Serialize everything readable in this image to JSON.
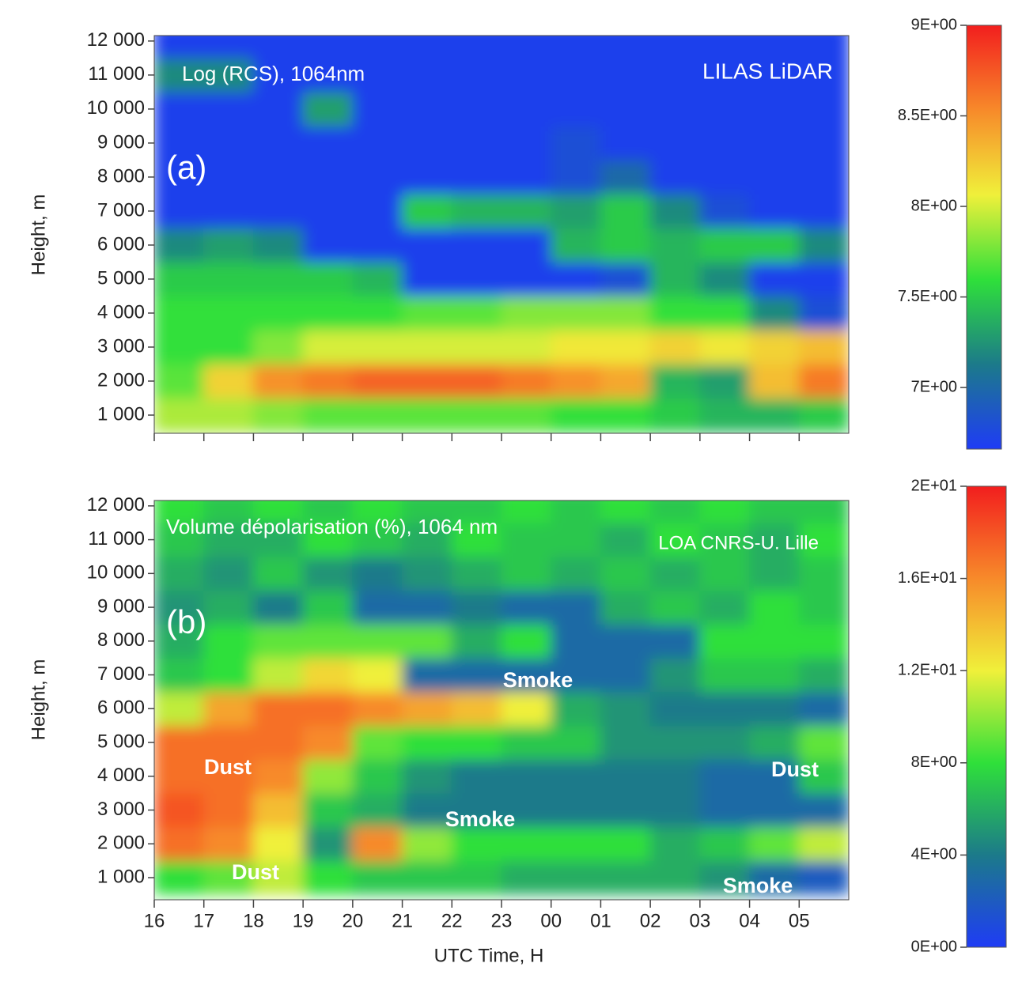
{
  "chart_data": [
    {
      "type": "heatmap",
      "annotations": [
        "Log (RCS), 1064nm",
        "LILAS LiDAR",
        "(a)"
      ],
      "ylabel": "Height, m",
      "x": [
        16.5,
        17.5,
        18.5,
        19.5,
        20.5,
        21.5,
        22.5,
        23.5,
        24.5,
        25.5,
        26.5,
        27.5,
        28.5,
        29.5
      ],
      "y": [
        1000,
        2000,
        3000,
        4000,
        5000,
        6000,
        7000,
        8000,
        9000,
        10000,
        11000,
        12000
      ],
      "z": [
        [
          7.9,
          7.9,
          7.8,
          7.7,
          7.7,
          7.7,
          7.7,
          7.7,
          7.6,
          7.6,
          7.5,
          7.4,
          7.4,
          7.5
        ],
        [
          7.7,
          8.2,
          8.5,
          8.6,
          8.7,
          8.7,
          8.7,
          8.6,
          8.5,
          8.4,
          7.4,
          7.3,
          8.3,
          8.6
        ],
        [
          7.6,
          7.6,
          7.8,
          8.0,
          8.0,
          8.0,
          8.0,
          8.0,
          8.1,
          8.1,
          8.2,
          8.1,
          8.2,
          8.3
        ],
        [
          7.6,
          7.6,
          7.6,
          7.6,
          7.6,
          7.7,
          7.7,
          7.8,
          7.8,
          7.8,
          7.6,
          7.6,
          7.2,
          6.8
        ],
        [
          7.5,
          7.5,
          7.5,
          7.5,
          7.4,
          6.7,
          6.7,
          6.7,
          6.7,
          6.8,
          7.4,
          7.2,
          6.7,
          6.7
        ],
        [
          7.2,
          7.3,
          7.2,
          6.7,
          6.7,
          6.7,
          6.7,
          6.7,
          7.4,
          7.5,
          7.4,
          7.5,
          7.5,
          7.2
        ],
        [
          6.7,
          6.7,
          6.7,
          6.7,
          6.7,
          7.5,
          7.4,
          7.4,
          7.3,
          7.5,
          7.2,
          6.8,
          6.7,
          6.7
        ],
        [
          6.7,
          6.7,
          6.7,
          6.7,
          6.7,
          6.7,
          6.7,
          6.7,
          6.8,
          7.0,
          6.7,
          6.7,
          6.7,
          6.7
        ],
        [
          6.7,
          6.7,
          6.7,
          6.7,
          6.7,
          6.7,
          6.7,
          6.7,
          6.8,
          6.7,
          6.7,
          6.7,
          6.7,
          6.7
        ],
        [
          6.7,
          6.7,
          6.7,
          7.3,
          6.7,
          6.7,
          6.7,
          6.7,
          6.7,
          6.7,
          6.7,
          6.7,
          6.7,
          6.7
        ],
        [
          7.2,
          7.2,
          6.7,
          6.7,
          6.7,
          6.7,
          6.7,
          6.7,
          6.7,
          6.7,
          6.7,
          6.7,
          6.7,
          6.7
        ],
        [
          6.7,
          6.7,
          6.7,
          6.7,
          6.7,
          6.7,
          6.7,
          6.7,
          6.7,
          6.7,
          6.7,
          6.7,
          6.7,
          6.7
        ]
      ],
      "colors": [
        "#1f3cf5",
        "#1c7a8a",
        "#2fe03a",
        "#f0f03a",
        "#f78a2a",
        "#f21e1e"
      ],
      "zlim": [
        6.66,
        9
      ],
      "zticks": [
        {
          "value": 7,
          "label": "7E+00"
        },
        {
          "value": 7.5,
          "label": "7.5E+00"
        },
        {
          "value": 8,
          "label": "8E+00"
        },
        {
          "value": 8.5,
          "label": "8.5E+00"
        },
        {
          "value": 9,
          "label": "9E+00"
        }
      ],
      "xlim": [
        16,
        30
      ],
      "xticks": [
        16,
        17,
        18,
        19,
        20,
        21,
        22,
        23,
        24,
        25,
        26,
        27,
        28,
        29
      ],
      "ylim": [
        465,
        12160
      ],
      "yticks": [
        {
          "value": 1000,
          "label": "1 000"
        },
        {
          "value": 2000,
          "label": "2 000"
        },
        {
          "value": 3000,
          "label": "3 000"
        },
        {
          "value": 4000,
          "label": "4 000"
        },
        {
          "value": 5000,
          "label": "5 000"
        },
        {
          "value": 6000,
          "label": "6 000"
        },
        {
          "value": 7000,
          "label": "7 000"
        },
        {
          "value": 8000,
          "label": "8 000"
        },
        {
          "value": 9000,
          "label": "9 000"
        },
        {
          "value": 10000,
          "label": "10 000"
        },
        {
          "value": 11000,
          "label": "11 000"
        },
        {
          "value": 12000,
          "label": "12 000"
        }
      ]
    },
    {
      "type": "heatmap",
      "annotations": [
        "Volume dépolarisation (%), 1064 nm",
        "LOA CNRS-U. Lille",
        "(b)",
        "Smoke",
        "Dust",
        "Dust",
        "Smoke",
        "Dust",
        "Smoke"
      ],
      "ylabel": "Height, m",
      "xlabel": "UTC Time, H",
      "x": [
        16.5,
        17.5,
        18.5,
        19.5,
        20.5,
        21.5,
        22.5,
        23.5,
        24.5,
        25.5,
        26.5,
        27.5,
        28.5,
        29.5
      ],
      "y": [
        1000,
        2000,
        3000,
        4000,
        5000,
        6000,
        7000,
        8000,
        9000,
        10000,
        11000,
        12000
      ],
      "z": [
        [
          8,
          9,
          11,
          8,
          7,
          7,
          7,
          6,
          6,
          6,
          6,
          5,
          3,
          2
        ],
        [
          17,
          16,
          12,
          5,
          16,
          10,
          8,
          8,
          8,
          8,
          6,
          7,
          9,
          11
        ],
        [
          18,
          17,
          14,
          7,
          6,
          4,
          4,
          4,
          4,
          4,
          4,
          3,
          3,
          3
        ],
        [
          17,
          17,
          16,
          10,
          7,
          5,
          4,
          4,
          4,
          4,
          4,
          3,
          3,
          7
        ],
        [
          17,
          17,
          17,
          16,
          9,
          8,
          8,
          7,
          7,
          5,
          5,
          5,
          6,
          9
        ],
        [
          11,
          15,
          17,
          17,
          16,
          15,
          14,
          12,
          6,
          5,
          4,
          4,
          4,
          3
        ],
        [
          7,
          8,
          11,
          13,
          12,
          3,
          3,
          3,
          3,
          3,
          5,
          7,
          7,
          6
        ],
        [
          6,
          8,
          9,
          9,
          9,
          9,
          6,
          8,
          3,
          3,
          3,
          8,
          8,
          8
        ],
        [
          5,
          6,
          4,
          7,
          3,
          3,
          4,
          3,
          3,
          6,
          7,
          6,
          8,
          7
        ],
        [
          6,
          5,
          7,
          5,
          4,
          5,
          6,
          7,
          6,
          7,
          6,
          7,
          6,
          7
        ],
        [
          7,
          6,
          6,
          8,
          7,
          6,
          8,
          7,
          7,
          6,
          8,
          7,
          6,
          8
        ],
        [
          8,
          7,
          8,
          7,
          8,
          7,
          7,
          8,
          7,
          8,
          7,
          8,
          7,
          7
        ]
      ],
      "colors": [
        "#1f3cf5",
        "#1c7a8a",
        "#2fe03a",
        "#f0f03a",
        "#f78a2a",
        "#f21e1e"
      ],
      "zlim": [
        0,
        20
      ],
      "zticks": [
        {
          "value": 0,
          "label": "0E+00"
        },
        {
          "value": 4,
          "label": "4E+00"
        },
        {
          "value": 8,
          "label": "8E+00"
        },
        {
          "value": 12,
          "label": "1.2E+01"
        },
        {
          "value": 16,
          "label": "1.6E+01"
        },
        {
          "value": 20,
          "label": "2E+01"
        }
      ],
      "xlim": [
        16,
        30
      ],
      "xticks": [
        16,
        17,
        18,
        19,
        20,
        21,
        22,
        23,
        {
          "value": 24,
          "label": "00"
        },
        {
          "value": 25,
          "label": "01"
        },
        {
          "value": 26,
          "label": "02"
        },
        {
          "value": 27,
          "label": "03"
        },
        {
          "value": 28,
          "label": "04"
        },
        {
          "value": 29,
          "label": "05"
        }
      ],
      "ylim": [
        345,
        12160
      ],
      "yticks": [
        {
          "value": 1000,
          "label": "1 000"
        },
        {
          "value": 2000,
          "label": "2 000"
        },
        {
          "value": 3000,
          "label": "3 000"
        },
        {
          "value": 4000,
          "label": "4 000"
        },
        {
          "value": 5000,
          "label": "5 000"
        },
        {
          "value": 6000,
          "label": "6 000"
        },
        {
          "value": 7000,
          "label": "7 000"
        },
        {
          "value": 8000,
          "label": "8 000"
        },
        {
          "value": 9000,
          "label": "9 000"
        },
        {
          "value": 10000,
          "label": "10 000"
        },
        {
          "value": 11000,
          "label": "11 000"
        },
        {
          "value": 12000,
          "label": "12 000"
        }
      ]
    }
  ]
}
